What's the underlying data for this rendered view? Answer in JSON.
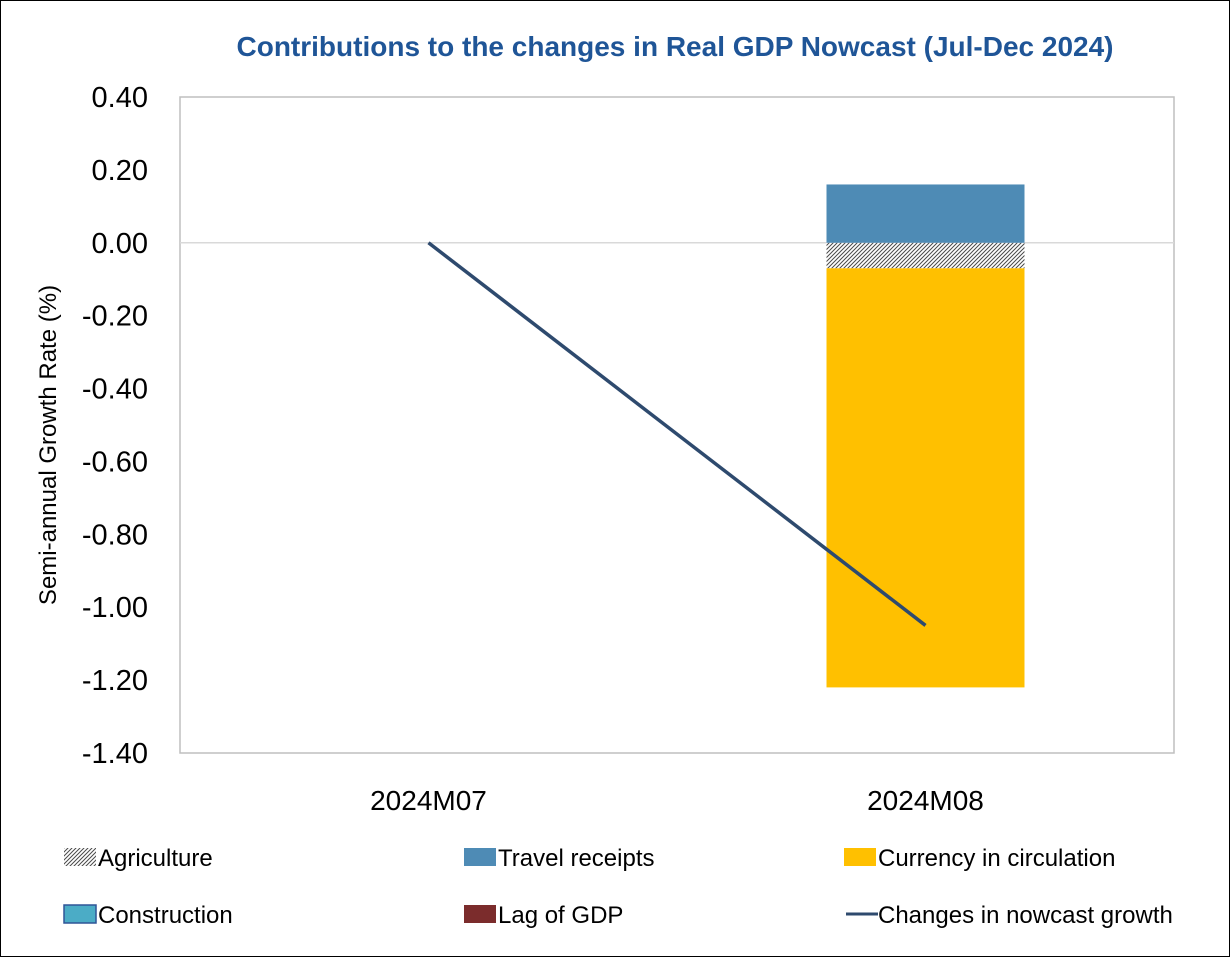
{
  "chart_data": {
    "type": "bar",
    "stacked": true,
    "title": "Contributions to the changes in Real GDP Nowcast (Jul-Dec 2024)",
    "ylabel": "Semi-annual Growth Rate (%)",
    "xlabel": "",
    "ylim": [
      -1.4,
      0.4
    ],
    "yticks": [
      "0.40",
      "0.20",
      "0.00",
      "-0.20",
      "-0.40",
      "-0.60",
      "-0.80",
      "-1.00",
      "-1.20",
      "-1.40"
    ],
    "ytick_values": [
      0.4,
      0.2,
      0.0,
      -0.2,
      -0.4,
      -0.6,
      -0.8,
      -1.0,
      -1.2,
      -1.4
    ],
    "categories": [
      "2024M07",
      "2024M08"
    ],
    "series": [
      {
        "name": "Agriculture",
        "kind": "bar",
        "values": [
          0,
          -0.07
        ],
        "color": "#9e9e9e",
        "pattern": "hatch"
      },
      {
        "name": "Travel receipts",
        "kind": "bar",
        "values": [
          0,
          0.16
        ],
        "color": "#4e8bb5"
      },
      {
        "name": "Currency in circulation",
        "kind": "bar",
        "values": [
          0,
          -1.15
        ],
        "color": "#ffc000"
      },
      {
        "name": "Construction",
        "kind": "bar",
        "values": [
          0,
          0
        ],
        "color": "#4bacc6"
      },
      {
        "name": "Lag of GDP",
        "kind": "bar",
        "values": [
          0,
          0
        ],
        "color": "#7b2c2c"
      },
      {
        "name": "Changes in nowcast growth",
        "kind": "line",
        "values": [
          0.0,
          -1.05
        ],
        "color": "#2e4a6e"
      }
    ],
    "legend_position": "bottom",
    "grid": false,
    "title_color": "#1f5597"
  }
}
